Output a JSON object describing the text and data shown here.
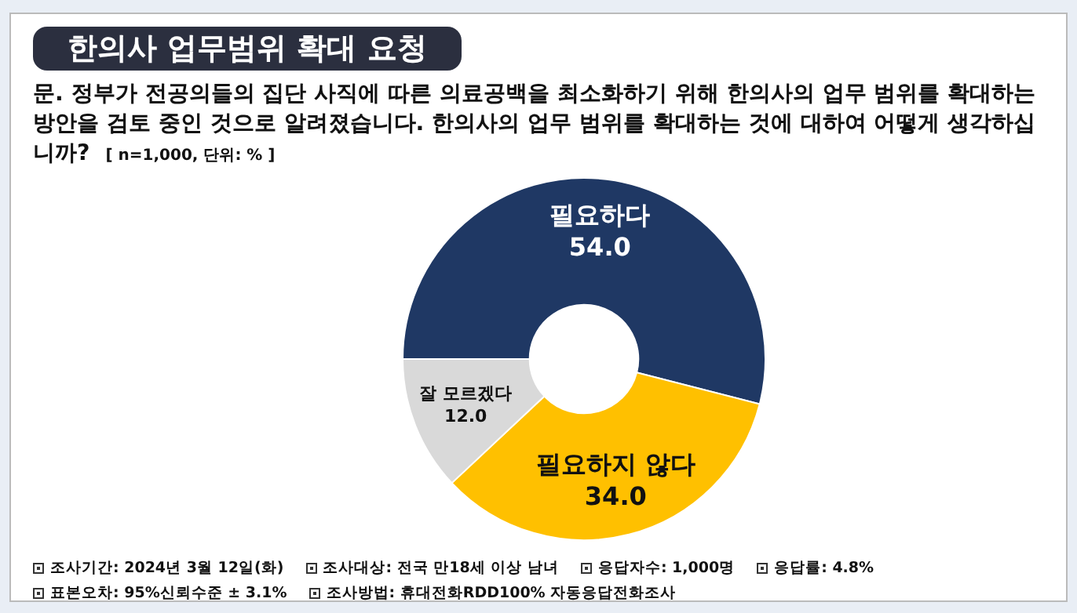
{
  "chart_data": {
    "type": "donut",
    "title": "한의사 업무범위 확대 요청",
    "subtitle": "문. 정부가 전공의들의 집단 사직에 따른 의료공백을 최소화하기 위해 한의사의 업무 범위를 확대하는 방안을 검토 중인 것으로 알려졌습니다. 한의사의 업무 범위를 확대하는 것에 대하여 어떻게 생각하십니까?",
    "categories": [
      "필요하다",
      "필요하지 않다",
      "잘 모르겠다"
    ],
    "values": [
      54.0,
      34.0,
      12.0
    ],
    "colors": [
      "#1f3864",
      "#ffc000",
      "#d9d9d9"
    ],
    "value_labels": [
      "54.0",
      "34.0",
      "12.0"
    ],
    "legend": false,
    "annotations": [
      "[ n=1,000, 단위: % ]",
      "조사기간: 2024년 3월 12일(화)",
      "조사대상: 전국 만18세 이상 남녀",
      "응답자수: 1,000명",
      "응답률: 4.8%",
      "표본오차: 95%신뢰수준 ± 3.1%",
      "조사방법: 휴대전화RDD100% 자동응답전화조사"
    ]
  }
}
